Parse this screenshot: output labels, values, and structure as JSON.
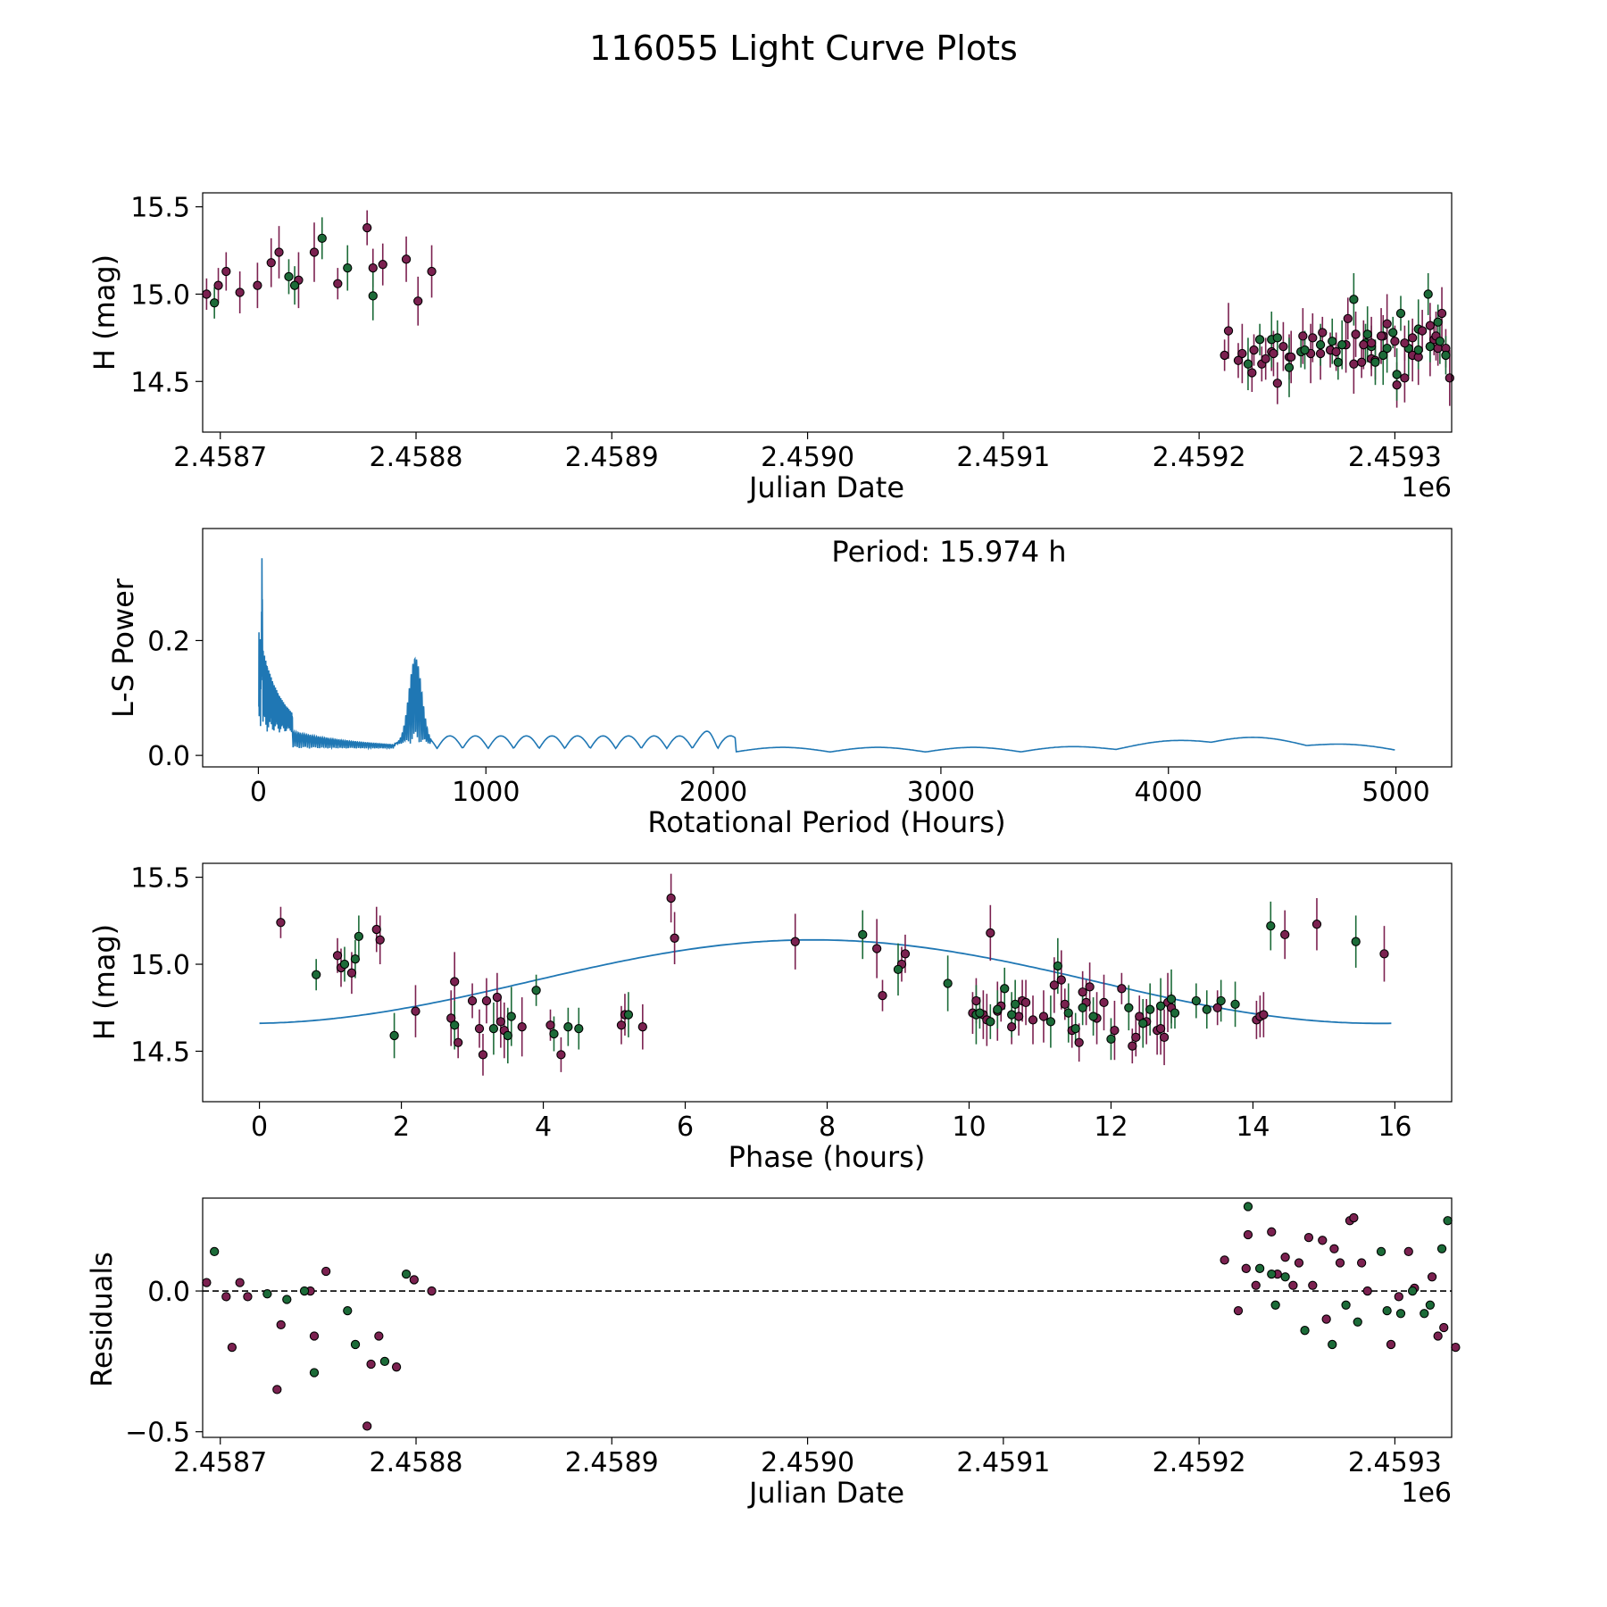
{
  "figure": {
    "title": "116055 Light Curve Plots"
  },
  "colors": {
    "maroon": "#7b2150",
    "green": "#1c6b38",
    "line": "#1f77b4"
  },
  "chart_data": [
    {
      "type": "scatter",
      "id": "lightcurve",
      "xlabel": "Julian Date",
      "ylabel": "H (mag)",
      "xlim": [
        2458691,
        2459329
      ],
      "ylim": [
        14.21,
        15.58
      ],
      "xticks": [
        2458700,
        2458800,
        2458900,
        2459000,
        2459100,
        2459200,
        2459300
      ],
      "xticklabels": [
        "2.4587",
        "2.4588",
        "2.4589",
        "2.4590",
        "2.4591",
        "2.4592",
        "2.4593"
      ],
      "offset_label": "1e6",
      "yticks": [
        14.5,
        15.0,
        15.5
      ],
      "yticklabels": [
        "14.5",
        "15.0",
        "15.5"
      ],
      "series": [
        {
          "name": "maroon",
          "x": [
            2458693,
            2458699,
            2458703,
            2458710,
            2458719,
            2458726,
            2458730,
            2458740,
            2458748,
            2458760,
            2458775,
            2458778,
            2458783,
            2458795,
            2458801,
            2458808,
            2459215,
            2459222,
            2459228,
            2459232,
            2459237,
            2459240,
            2459246,
            2459258,
            2459262,
            2459275,
            2459279,
            2459283,
            2459288,
            2459290,
            2459294,
            2459301,
            2459305,
            2459309,
            2459312,
            2459318,
            2459320,
            2459322,
            2459326
          ],
          "y": [
            15.0,
            15.05,
            15.13,
            15.01,
            15.05,
            15.18,
            15.24,
            15.08,
            15.24,
            15.06,
            15.38,
            15.15,
            15.17,
            15.2,
            14.96,
            15.13,
            14.79,
            14.66,
            14.68,
            14.6,
            14.67,
            14.49,
            14.64,
            14.75,
            14.66,
            14.71,
            14.6,
            14.61,
            14.63,
            14.62,
            14.76,
            14.48,
            14.52,
            14.65,
            14.64,
            14.7,
            14.74,
            14.69,
            14.69
          ]
        },
        {
          "name": "green",
          "x": [
            2458697,
            2458735,
            2458738,
            2458752,
            2458765,
            2458778,
            2459225,
            2459237,
            2459246,
            2459252,
            2459271,
            2459285,
            2459288,
            2459290,
            2459296,
            2459301,
            2459307,
            2459312,
            2459318,
            2459322,
            2459326
          ],
          "y": [
            14.95,
            15.1,
            15.05,
            15.32,
            15.15,
            14.99,
            14.6,
            14.74,
            14.58,
            14.67,
            14.61,
            14.72,
            14.7,
            14.61,
            14.69,
            14.54,
            14.69,
            14.8,
            14.7,
            14.84,
            14.65
          ]
        }
      ],
      "x_right_extra": {
        "maroon_x": [
          2459213,
          2459220,
          2459227,
          2459234,
          2459238,
          2459243,
          2459247,
          2459253,
          2459257,
          2459263,
          2459267,
          2459270,
          2459276,
          2459280,
          2459284,
          2459288,
          2459293,
          2459296,
          2459300,
          2459305,
          2459309,
          2459314,
          2459318,
          2459321,
          2459324,
          2459328
        ],
        "maroon_y": [
          14.65,
          14.62,
          14.55,
          14.63,
          14.66,
          14.7,
          14.64,
          14.76,
          14.66,
          14.78,
          14.68,
          14.67,
          14.86,
          14.77,
          14.71,
          14.72,
          14.76,
          14.83,
          14.73,
          14.72,
          14.75,
          14.79,
          14.82,
          14.76,
          14.89,
          14.52
        ],
        "green_x": [
          2459231,
          2459240,
          2459254,
          2459262,
          2459268,
          2459273,
          2459279,
          2459286,
          2459294,
          2459299,
          2459303,
          2459312,
          2459317,
          2459323
        ],
        "green_y": [
          14.74,
          14.75,
          14.68,
          14.71,
          14.73,
          14.71,
          14.97,
          14.77,
          14.65,
          14.78,
          14.89,
          14.68,
          15.0,
          14.73
        ]
      }
    },
    {
      "type": "line",
      "id": "periodogram",
      "xlabel": "Rotational Period (Hours)",
      "ylabel": "L-S Power",
      "annotation": "Period: 15.974 h",
      "xlim": [
        -245,
        5245
      ],
      "ylim": [
        -0.02,
        0.395
      ],
      "xticks": [
        0,
        1000,
        2000,
        3000,
        4000,
        5000
      ],
      "xticklabels": [
        "0",
        "1000",
        "2000",
        "3000",
        "4000",
        "5000"
      ],
      "yticks": [
        0.0,
        0.2
      ],
      "yticklabels": [
        "0.0",
        "0.2"
      ]
    },
    {
      "type": "scatter",
      "id": "phased",
      "xlabel": "Phase (hours)",
      "ylabel": "H (mag)",
      "xlim": [
        -0.8,
        16.8
      ],
      "ylim": [
        14.21,
        15.58
      ],
      "xticks": [
        0,
        2,
        4,
        6,
        8,
        10,
        12,
        14,
        16
      ],
      "xticklabels": [
        "0",
        "2",
        "4",
        "6",
        "8",
        "10",
        "12",
        "14",
        "16"
      ],
      "yticks": [
        14.5,
        15.0,
        15.5
      ],
      "yticklabels": [
        "14.5",
        "15.0",
        "15.5"
      ],
      "fit": {
        "period": 15.974,
        "mean": 14.9,
        "amplitude": 0.24,
        "phase_max": 7.8
      },
      "series": [
        {
          "name": "maroon",
          "x": [
            0.3,
            1.1,
            1.15,
            1.3,
            1.65,
            1.7,
            2.2,
            2.7,
            2.75,
            2.8,
            3.0,
            3.1,
            3.15,
            3.2,
            3.35,
            3.4,
            3.45,
            3.7,
            4.1,
            4.25,
            5.1,
            5.15,
            5.4,
            5.8,
            5.85,
            7.55,
            8.7,
            8.78,
            9.05,
            9.1,
            10.05,
            10.1,
            10.2,
            10.25,
            10.3,
            10.4,
            10.45,
            10.6,
            10.7,
            10.75,
            10.8,
            10.9,
            11.05,
            11.2,
            11.3,
            11.35,
            11.45,
            11.55,
            11.6,
            11.65,
            11.7,
            11.8,
            11.9,
            12.05,
            12.15,
            12.3,
            12.35,
            12.4,
            12.5,
            12.65,
            12.7,
            12.75,
            12.8,
            12.85,
            13.5,
            14.05,
            14.1,
            14.15,
            14.45,
            14.9,
            15.85
          ],
          "y": [
            15.24,
            15.05,
            14.98,
            14.95,
            15.2,
            15.14,
            14.73,
            14.69,
            14.9,
            14.55,
            14.79,
            14.63,
            14.48,
            14.79,
            14.81,
            14.67,
            14.62,
            14.64,
            14.65,
            14.48,
            14.65,
            14.71,
            14.64,
            15.38,
            15.15,
            15.13,
            15.09,
            14.82,
            15.0,
            15.06,
            14.72,
            14.79,
            14.71,
            14.68,
            15.18,
            14.73,
            14.76,
            14.64,
            14.7,
            14.79,
            14.78,
            14.68,
            14.7,
            14.88,
            14.91,
            14.77,
            14.62,
            14.55,
            14.84,
            14.78,
            14.87,
            14.69,
            14.78,
            14.62,
            14.86,
            14.53,
            14.58,
            14.7,
            14.67,
            14.62,
            14.63,
            14.58,
            14.78,
            14.75,
            14.75,
            14.68,
            14.7,
            14.71,
            15.17,
            15.23,
            15.06
          ]
        },
        {
          "name": "green",
          "x": [
            0.8,
            1.2,
            1.35,
            1.4,
            1.9,
            2.75,
            3.3,
            3.5,
            3.55,
            3.9,
            4.15,
            4.35,
            4.5,
            5.2,
            8.5,
            9.0,
            9.7,
            10.1,
            10.15,
            10.3,
            10.4,
            10.5,
            10.6,
            10.65,
            11.15,
            11.25,
            11.4,
            11.5,
            11.6,
            11.75,
            12.0,
            12.25,
            12.45,
            12.55,
            12.7,
            12.85,
            12.9,
            13.2,
            13.35,
            13.55,
            13.75,
            14.25,
            15.45
          ],
          "y": [
            14.94,
            15.0,
            15.03,
            15.16,
            14.59,
            14.65,
            14.63,
            14.59,
            14.7,
            14.85,
            14.6,
            14.64,
            14.63,
            14.71,
            15.17,
            14.97,
            14.89,
            14.71,
            14.72,
            14.67,
            14.74,
            14.86,
            14.71,
            14.77,
            14.67,
            14.99,
            14.72,
            14.63,
            14.75,
            14.7,
            14.57,
            14.75,
            14.66,
            14.74,
            14.76,
            14.8,
            14.72,
            14.79,
            14.74,
            14.79,
            14.77,
            15.22,
            15.13
          ]
        }
      ]
    },
    {
      "type": "scatter",
      "id": "residuals",
      "xlabel": "Julian Date",
      "ylabel": "Residuals",
      "xlim": [
        2458691,
        2459329
      ],
      "ylim": [
        -0.52,
        0.33
      ],
      "xticks": [
        2458700,
        2458800,
        2458900,
        2459000,
        2459100,
        2459200,
        2459300
      ],
      "xticklabels": [
        "2.4587",
        "2.4588",
        "2.4589",
        "2.4590",
        "2.4591",
        "2.4592",
        "2.4593"
      ],
      "offset_label": "1e6",
      "yticks": [
        -0.5,
        0.0
      ],
      "yticklabels": [
        "−0.5",
        "0.0"
      ],
      "zero_line": 0.0,
      "series": [
        {
          "name": "maroon",
          "x": [
            2458693,
            2458703,
            2458706,
            2458710,
            2458714,
            2458729,
            2458731,
            2458746,
            2458748,
            2458754,
            2458775,
            2458777,
            2458781,
            2458790,
            2458799,
            2458808,
            2459213,
            2459220,
            2459224,
            2459225,
            2459229,
            2459237,
            2459240,
            2459244,
            2459248,
            2459251,
            2459256,
            2459258,
            2459263,
            2459265,
            2459269,
            2459272,
            2459277,
            2459279,
            2459283,
            2459286,
            2459298,
            2459302,
            2459307,
            2459310,
            2459319,
            2459322,
            2459325,
            2459331
          ],
          "y": [
            0.03,
            -0.02,
            -0.2,
            0.03,
            -0.02,
            -0.35,
            -0.12,
            0.0,
            -0.16,
            0.07,
            -0.48,
            -0.26,
            -0.16,
            -0.27,
            0.04,
            0.0,
            0.11,
            -0.07,
            0.08,
            0.2,
            0.02,
            0.21,
            0.06,
            0.12,
            0.02,
            0.1,
            0.19,
            0.02,
            0.18,
            -0.1,
            0.15,
            0.1,
            0.25,
            0.26,
            0.1,
            0.0,
            -0.19,
            -0.02,
            0.14,
            0.01,
            0.05,
            -0.16,
            -0.13,
            -0.2
          ]
        },
        {
          "name": "green",
          "x": [
            2458697,
            2458724,
            2458734,
            2458743,
            2458748,
            2458765,
            2458769,
            2458784,
            2458795,
            2459225,
            2459231,
            2459237,
            2459239,
            2459244,
            2459254,
            2459268,
            2459275,
            2459281,
            2459293,
            2459296,
            2459303,
            2459309,
            2459315,
            2459318,
            2459324,
            2459327
          ],
          "y": [
            0.14,
            -0.01,
            -0.03,
            0.0,
            -0.29,
            -0.07,
            -0.19,
            -0.25,
            0.06,
            0.3,
            0.08,
            0.06,
            -0.05,
            0.05,
            -0.14,
            -0.19,
            -0.05,
            -0.11,
            0.14,
            -0.07,
            -0.08,
            0.0,
            -0.08,
            -0.05,
            0.15,
            0.25
          ]
        }
      ]
    }
  ]
}
